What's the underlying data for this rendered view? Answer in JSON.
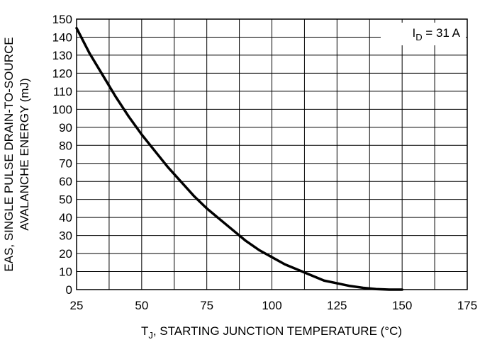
{
  "chart_data": {
    "type": "line",
    "xlabel_main": "T",
    "xlabel_sub": "J",
    "xlabel_rest": ", STARTING JUNCTION TEMPERATURE (°C)",
    "ylabel_line1": "EAS, SINGLE PULSE DRAIN-TO-SOURCE",
    "ylabel_line2": "AVALANCHE ENERGY (mJ)",
    "xlim": [
      25,
      175
    ],
    "ylim": [
      0,
      150
    ],
    "x_ticks": [
      25,
      50,
      75,
      100,
      125,
      150,
      175
    ],
    "y_ticks": [
      0,
      10,
      20,
      30,
      40,
      50,
      60,
      70,
      80,
      90,
      100,
      110,
      120,
      130,
      140,
      150
    ],
    "x_grid_step": 12.5,
    "grid": true,
    "annotation": {
      "main": "I",
      "sub": "D",
      "rest": " = 31 A",
      "position": "top-right"
    },
    "series": [
      {
        "x": [
          25,
          30,
          35,
          40,
          45,
          50,
          55,
          60,
          65,
          70,
          75,
          80,
          85,
          90,
          95,
          100,
          105,
          110,
          115,
          120,
          125,
          130,
          135,
          140,
          145,
          150
        ],
        "y": [
          145,
          131,
          119,
          107,
          96,
          86,
          77,
          68,
          60,
          52,
          45,
          39,
          33,
          27,
          22,
          18,
          14,
          11,
          8,
          5,
          3.5,
          2,
          1,
          0.3,
          0,
          0
        ]
      }
    ]
  }
}
